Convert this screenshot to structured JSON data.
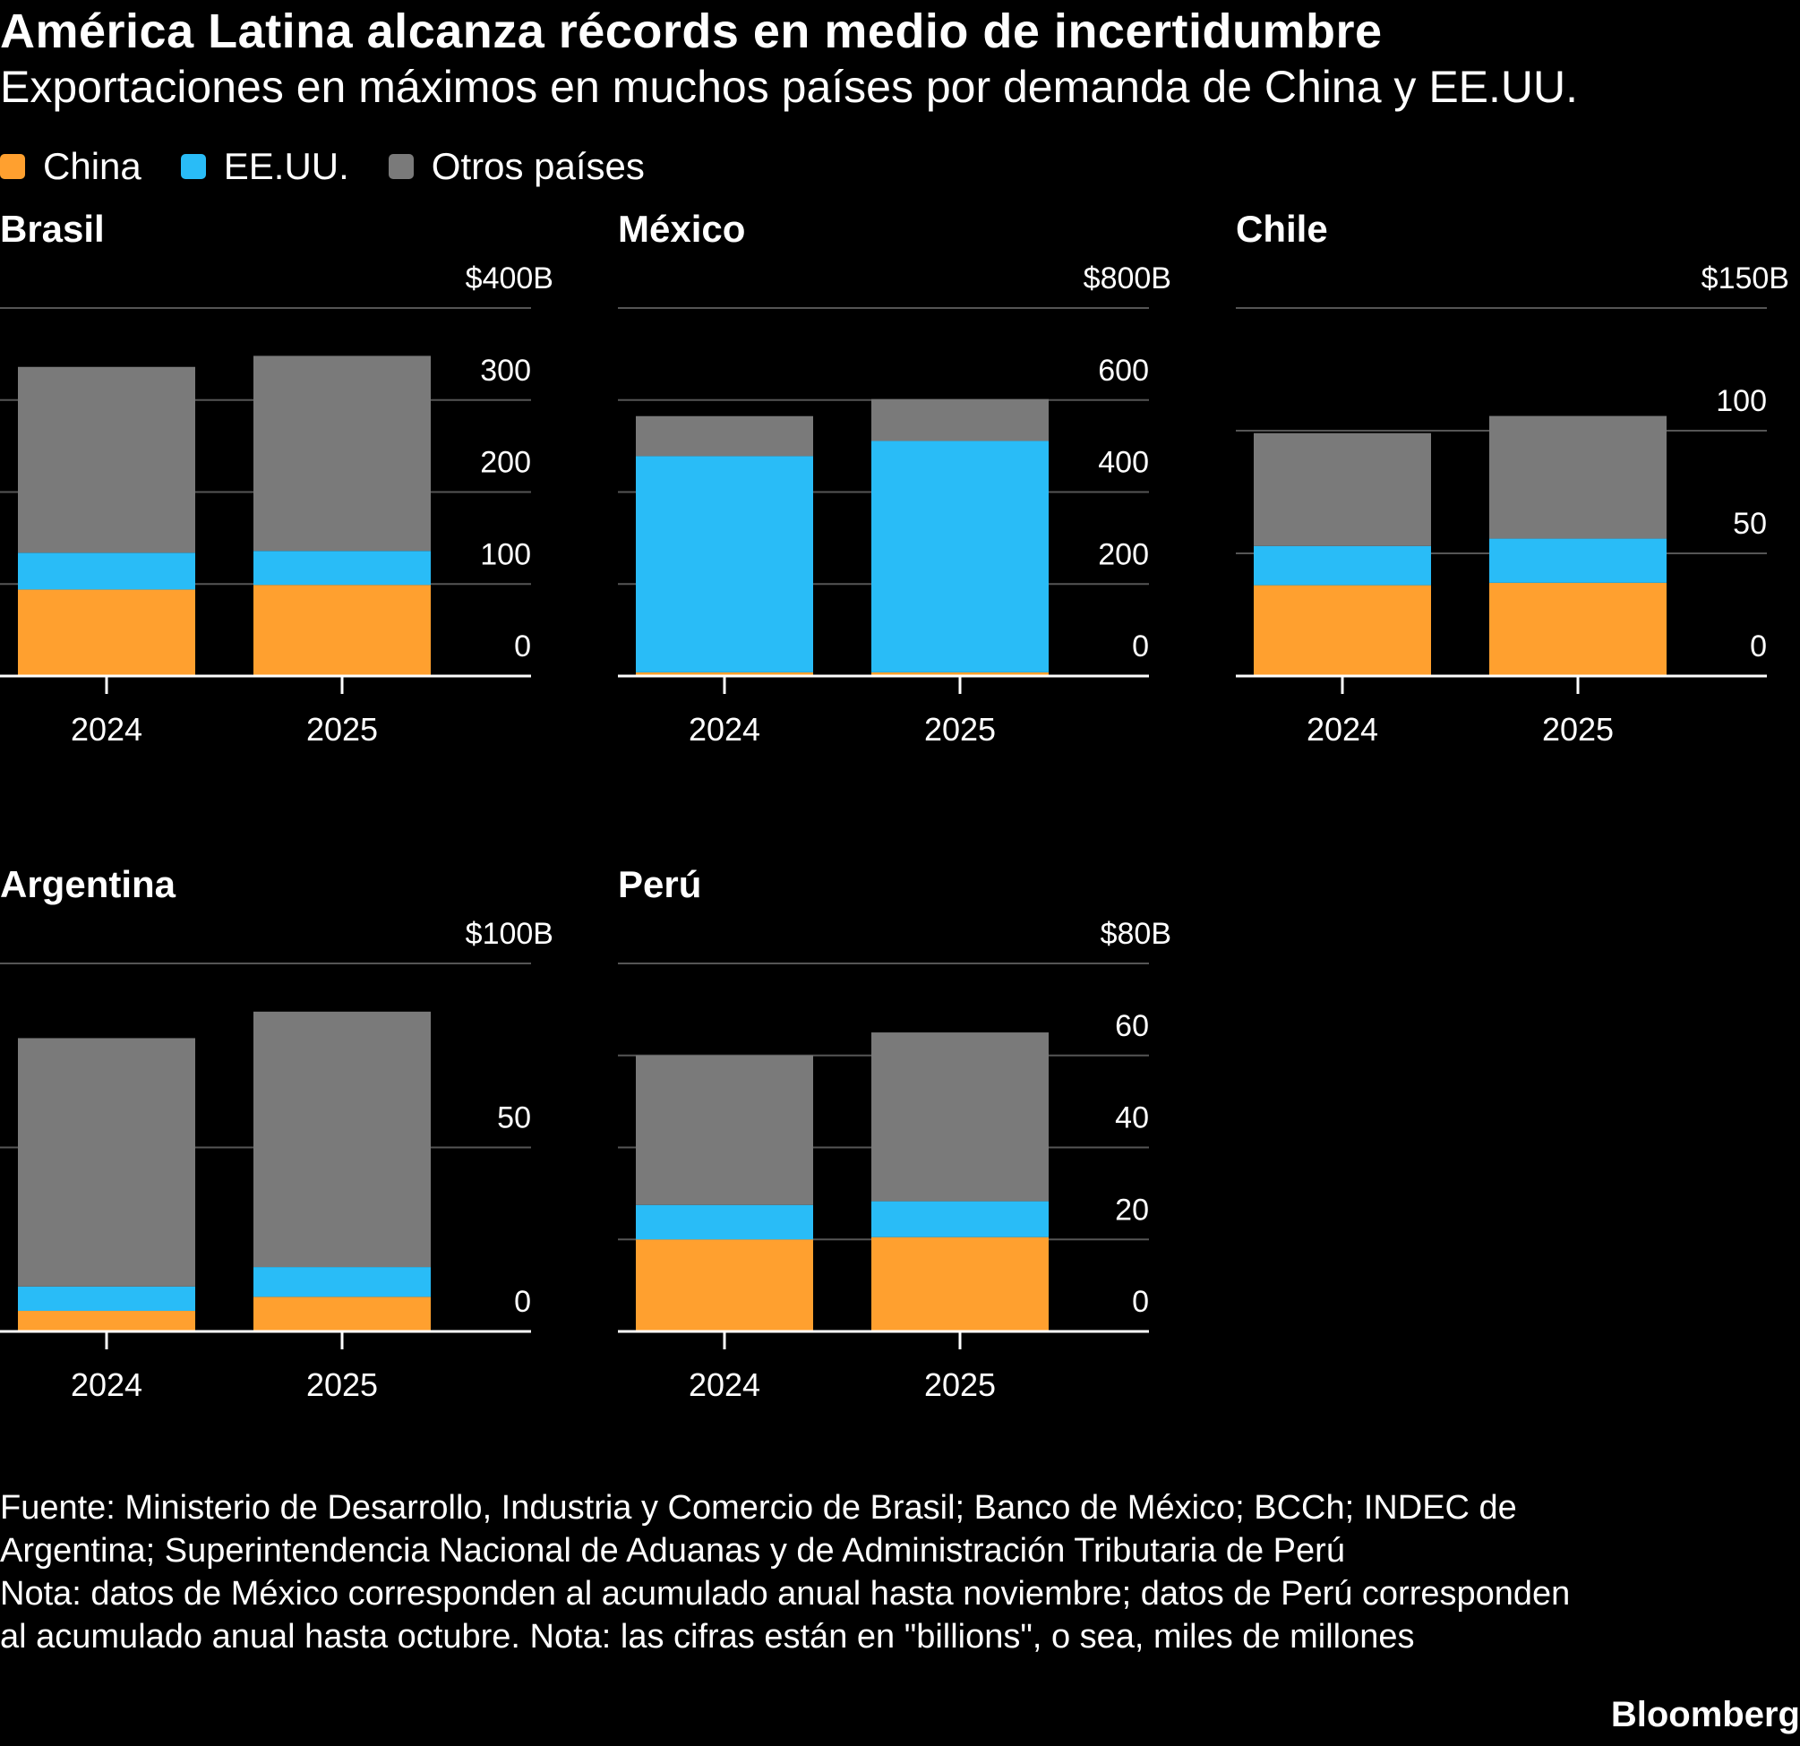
{
  "header": {
    "title": "América Latina alcanza récords en medio de incertidumbre",
    "subtitle": "Exportaciones en máximos en muchos países por demanda de China y EE.UU."
  },
  "legend": [
    {
      "label": "China",
      "color": "#FFA02F"
    },
    {
      "label": "EE.UU.",
      "color": "#29BCF7"
    },
    {
      "label": "Otros países",
      "color": "#7A7A7A"
    }
  ],
  "chart_data": [
    {
      "type": "bar",
      "stacked": true,
      "title": "Brasil",
      "categories": [
        "2024",
        "2025"
      ],
      "ylim": [
        0,
        400
      ],
      "yticks": [
        "0",
        "100",
        "200",
        "300",
        "$400B"
      ],
      "series": [
        {
          "name": "China",
          "values": [
            94,
            99
          ]
        },
        {
          "name": "EE.UU.",
          "values": [
            40,
            37
          ]
        },
        {
          "name": "Otros países",
          "values": [
            202,
            212
          ]
        }
      ]
    },
    {
      "type": "bar",
      "stacked": true,
      "title": "México",
      "categories": [
        "2024",
        "2025"
      ],
      "ylim": [
        0,
        800
      ],
      "yticks": [
        "0",
        "200",
        "400",
        "600",
        "$800B"
      ],
      "series": [
        {
          "name": "China",
          "values": [
            8,
            8
          ]
        },
        {
          "name": "EE.UU.",
          "values": [
            470,
            503
          ]
        },
        {
          "name": "Otros países",
          "values": [
            87,
            91
          ]
        }
      ]
    },
    {
      "type": "bar",
      "stacked": true,
      "title": "Chile",
      "categories": [
        "2024",
        "2025"
      ],
      "ylim": [
        0,
        150
      ],
      "yticks": [
        "0",
        "50",
        "100",
        "$150B"
      ],
      "series": [
        {
          "name": "China",
          "values": [
            37,
            38
          ]
        },
        {
          "name": "EE.UU.",
          "values": [
            16,
            18
          ]
        },
        {
          "name": "Otros países",
          "values": [
            46,
            50
          ]
        }
      ]
    },
    {
      "type": "bar",
      "stacked": true,
      "title": "Argentina",
      "categories": [
        "2024",
        "2025"
      ],
      "ylim": [
        0,
        100
      ],
      "yticks": [
        "0",
        "50",
        "$100B"
      ],
      "series": [
        {
          "name": "China",
          "values": [
            5.6,
            9.4
          ]
        },
        {
          "name": "EE.UU.",
          "values": [
            6.6,
            8.1
          ]
        },
        {
          "name": "Otros países",
          "values": [
            67.5,
            69.4
          ]
        }
      ]
    },
    {
      "type": "bar",
      "stacked": true,
      "title": "Perú",
      "categories": [
        "2024",
        "2025"
      ],
      "ylim": [
        0,
        80
      ],
      "yticks": [
        "0",
        "20",
        "40",
        "60",
        "$80B"
      ],
      "series": [
        {
          "name": "China",
          "values": [
            20,
            20.5
          ]
        },
        {
          "name": "EE.UU.",
          "values": [
            7.5,
            7.8
          ]
        },
        {
          "name": "Otros países",
          "values": [
            32.5,
            36.7
          ]
        }
      ]
    }
  ],
  "footer": {
    "source": "Fuente: Ministerio de Desarrollo, Industria y Comercio de Brasil; Banco de México; BCCh; INDEC de Argentina; Superintendencia Nacional de Aduanas y de Administración Tributaria de Perú",
    "note": "Nota: datos de México corresponden al acumulado anual hasta noviembre; datos de Perú corresponden al acumulado anual hasta octubre. Nota: las cifras están en \"billions\", o sea, miles de millones",
    "brand": "Bloomberg"
  }
}
